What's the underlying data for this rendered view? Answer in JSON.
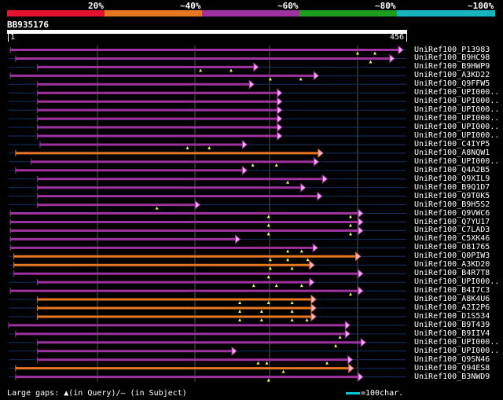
{
  "legend": {
    "labels": [
      "20%",
      "~40%",
      "~60%",
      "~80%",
      "~100%"
    ],
    "colors": [
      "#e4112f",
      "#e87722",
      "#a031a0",
      "#1c9e1c",
      "#19b5bf"
    ]
  },
  "query": {
    "id": "BB935176",
    "start": "1",
    "end": "456"
  },
  "colors": {
    "purple": "#a031a0",
    "orange": "#e87722",
    "ref": "#143063",
    "grid": "#555555",
    "triangle": "#f2f25a",
    "arrowhead": "#f5b3f5"
  },
  "hits": [
    {
      "label": "UniRef100_P13983",
      "color": "purple",
      "start": 2,
      "end": 447,
      "gaps": [
        400,
        420
      ]
    },
    {
      "label": "UniRef100_B9HC98",
      "color": "purple",
      "start": 8,
      "end": 437,
      "gaps": [
        415
      ]
    },
    {
      "label": "UniRef100_B9HWP9",
      "color": "purple",
      "start": 33,
      "end": 281,
      "gaps": [
        220,
        255
      ]
    },
    {
      "label": "UniRef100_A3KD22",
      "color": "purple",
      "start": 2,
      "end": 350,
      "gaps": [
        300,
        335
      ]
    },
    {
      "label": "UniRef100_Q9FFW5",
      "color": "purple",
      "start": 33,
      "end": 276,
      "gaps": []
    },
    {
      "label": "UniRef100_UPI000..",
      "color": "purple",
      "start": 33,
      "end": 308,
      "gaps": []
    },
    {
      "label": "UniRef100_UPI000..",
      "color": "purple",
      "start": 33,
      "end": 308,
      "gaps": []
    },
    {
      "label": "UniRef100_UPI000..",
      "color": "purple",
      "start": 33,
      "end": 308,
      "gaps": []
    },
    {
      "label": "UniRef100_UPI000..",
      "color": "purple",
      "start": 33,
      "end": 308,
      "gaps": []
    },
    {
      "label": "UniRef100_UPI000..",
      "color": "purple",
      "start": 33,
      "end": 308,
      "gaps": []
    },
    {
      "label": "UniRef100_UPI000..",
      "color": "purple",
      "start": 33,
      "end": 308,
      "gaps": []
    },
    {
      "label": "UniRef100_C4IYP5",
      "color": "purple",
      "start": 36,
      "end": 268,
      "gaps": [
        205,
        230
      ]
    },
    {
      "label": "UniRef100_A8NQW1",
      "color": "orange",
      "start": 8,
      "end": 355,
      "gaps": []
    },
    {
      "label": "UniRef100_UPI000..",
      "color": "purple",
      "start": 26,
      "end": 350,
      "gaps": [
        280,
        307
      ]
    },
    {
      "label": "UniRef100_Q4A2B5",
      "color": "purple",
      "start": 8,
      "end": 268,
      "gaps": []
    },
    {
      "label": "UniRef100_Q9XIL9",
      "color": "purple",
      "start": 33,
      "end": 360,
      "gaps": [
        320
      ]
    },
    {
      "label": "UniRef100_B9Q1D7",
      "color": "purple",
      "start": 33,
      "end": 335,
      "gaps": []
    },
    {
      "label": "UniRef100_Q9T0K5",
      "color": "purple",
      "start": 33,
      "end": 354,
      "gaps": []
    },
    {
      "label": "UniRef100_B9H5S2",
      "color": "purple",
      "start": 33,
      "end": 214,
      "gaps": [
        170
      ]
    },
    {
      "label": "UniRef100_Q9VWC6",
      "color": "purple",
      "start": 2,
      "end": 401,
      "gaps": [
        298,
        392
      ]
    },
    {
      "label": "UniRef100_Q7YU17",
      "color": "purple",
      "start": 2,
      "end": 401,
      "gaps": [
        298,
        392
      ]
    },
    {
      "label": "UniRef100_C7LAD3",
      "color": "purple",
      "start": 2,
      "end": 401,
      "gaps": [
        298,
        392
      ]
    },
    {
      "label": "UniRef100_C5XK46",
      "color": "purple",
      "start": 2,
      "end": 260,
      "gaps": []
    },
    {
      "label": "UniRef100_O81765",
      "color": "purple",
      "start": 2,
      "end": 349,
      "gaps": [
        320,
        336
      ]
    },
    {
      "label": "UniRef100_Q0PIW3",
      "color": "orange",
      "start": 6,
      "end": 398,
      "gaps": [
        300,
        320,
        343
      ]
    },
    {
      "label": "UniRef100_A3KD20",
      "color": "orange",
      "start": 6,
      "end": 345,
      "gaps": [
        300,
        325
      ]
    },
    {
      "label": "UniRef100_B4R7T8",
      "color": "purple",
      "start": 6,
      "end": 401,
      "gaps": [
        298
      ]
    },
    {
      "label": "UniRef100_UPI000..",
      "color": "purple",
      "start": 33,
      "end": 345,
      "gaps": [
        281,
        307,
        336
      ]
    },
    {
      "label": "UniRef100_B4I7C3",
      "color": "purple",
      "start": 2,
      "end": 401,
      "gaps": [
        392
      ]
    },
    {
      "label": "UniRef100_A8K4U6",
      "color": "orange",
      "start": 33,
      "end": 347,
      "gaps": [
        265,
        298,
        325
      ]
    },
    {
      "label": "UniRef100_A2I2P6",
      "color": "orange",
      "start": 33,
      "end": 347,
      "gaps": [
        265,
        290,
        325
      ]
    },
    {
      "label": "UniRef100_D1S534",
      "color": "orange",
      "start": 33,
      "end": 347,
      "gaps": [
        265,
        290,
        325,
        342
      ]
    },
    {
      "label": "UniRef100_B9T439",
      "color": "purple",
      "start": 0,
      "end": 386,
      "gaps": []
    },
    {
      "label": "UniRef100_B9IIV4",
      "color": "purple",
      "start": 8,
      "end": 386,
      "gaps": [
        380
      ]
    },
    {
      "label": "UniRef100_UPI000..",
      "color": "purple",
      "start": 33,
      "end": 404,
      "gaps": [
        375
      ]
    },
    {
      "label": "UniRef100_UPI000..",
      "color": "purple",
      "start": 33,
      "end": 256,
      "gaps": []
    },
    {
      "label": "UniRef100_Q9SN46",
      "color": "purple",
      "start": 33,
      "end": 389,
      "gaps": [
        286,
        296,
        365
      ]
    },
    {
      "label": "UniRef100_Q94ES8",
      "color": "orange",
      "start": 8,
      "end": 390,
      "gaps": [
        315
      ]
    },
    {
      "label": "UniRef100_B3NWD9",
      "color": "purple",
      "start": 8,
      "end": 401,
      "gaps": [
        298
      ]
    }
  ],
  "footer": {
    "gaps_text": "Large gaps: ▲(in Query)/– (in Subject)",
    "scale_text": "=100char."
  }
}
